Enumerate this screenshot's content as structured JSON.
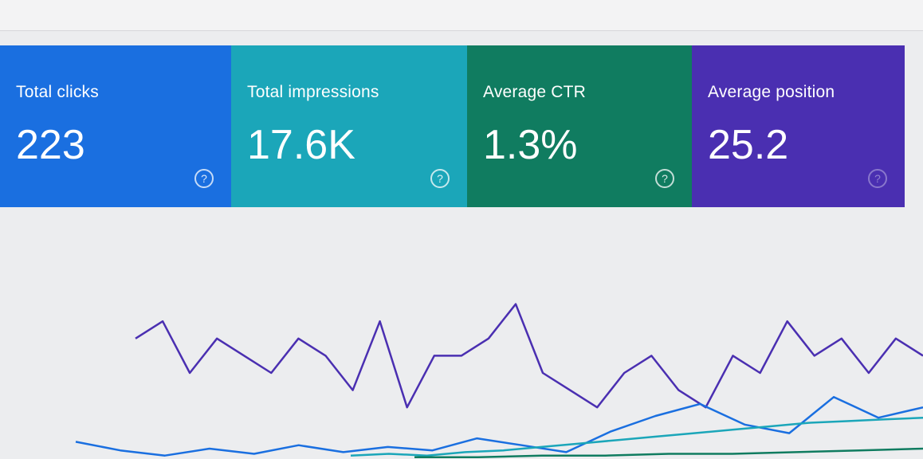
{
  "cards": [
    {
      "label": "Total clicks",
      "value": "223",
      "color": "#1a6fe0"
    },
    {
      "label": "Total impressions",
      "value": "17.6K",
      "color": "#1ba6b9"
    },
    {
      "label": "Average CTR",
      "value": "1.3%",
      "color": "#107c60"
    },
    {
      "label": "Average position",
      "value": "25.2",
      "color": "#4a2fb1"
    }
  ],
  "help_icon": "question-circle-icon",
  "chart_data": {
    "type": "line",
    "grid": false,
    "series": [
      {
        "color": "#4a2fb1",
        "values": [
          7,
          8,
          5,
          7,
          6,
          5,
          7,
          6,
          4,
          8,
          3,
          6,
          6,
          7,
          9,
          5,
          4,
          3,
          5,
          6,
          4,
          3,
          6,
          5,
          8,
          6,
          7,
          5,
          7,
          6
        ]
      },
      {
        "color": "#1a6fe0",
        "values": [
          1,
          0.5,
          0.2,
          0.6,
          0.3,
          0.8,
          0.4,
          0.7,
          0.5,
          1.2,
          0.8,
          0.4,
          1.6,
          2.5,
          3.2,
          2,
          1.5,
          3.6,
          2.4,
          3
        ]
      },
      {
        "color": "#1ba6b9",
        "values": [
          0.2,
          0.3,
          0.2,
          0.4,
          0.5,
          0.7,
          0.9,
          1.1,
          1.3,
          1.5,
          1.7,
          1.9,
          2.1,
          2.2,
          2.3,
          2.4
        ]
      },
      {
        "color": "#107c60",
        "values": [
          0.1,
          0.1,
          0.2,
          0.2,
          0.3,
          0.3,
          0.4,
          0.5,
          0.6
        ]
      }
    ]
  }
}
